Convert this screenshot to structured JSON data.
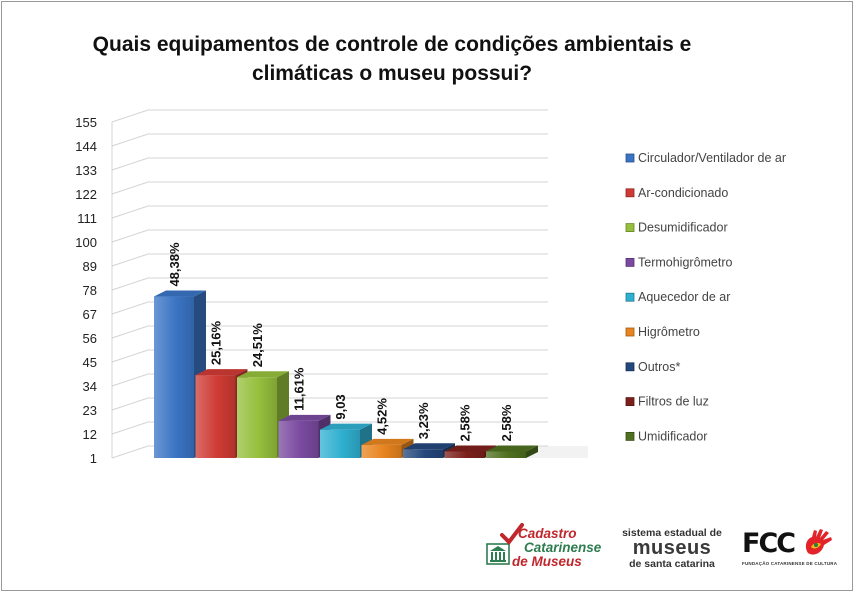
{
  "chart_data": {
    "type": "bar",
    "title": "Quais equipamentos de controle de condições ambientais e climáticas o museu possui?",
    "title_lines": [
      "Quais equipamentos de controle de condições ambientais e",
      "climáticas o museu possui?"
    ],
    "y_ticks": [
      "1",
      "12",
      "23",
      "34",
      "45",
      "56",
      "67",
      "78",
      "89",
      "100",
      "111",
      "122",
      "133",
      "144",
      "155"
    ],
    "ylim": [
      1,
      155
    ],
    "grid": true,
    "legend_position": "right",
    "categories": [
      "Circulador/Ventilador de ar",
      "Ar-condicionado",
      "Desumidificador",
      "Termohigrômetro",
      "Aquecedor de ar",
      "Higrômetro",
      "Outros*",
      "Filtros de luz",
      "Umidificador"
    ],
    "values": [
      75,
      39,
      38,
      18,
      14,
      7,
      5,
      4,
      4
    ],
    "data_labels": [
      "48,38%",
      "25,16%",
      "24,51%",
      "11,61%",
      "9,03",
      "4,52%",
      "3,23%",
      "2,58%",
      "2,58%"
    ],
    "colors": [
      "#3a74c4",
      "#cf3b34",
      "#95bf3c",
      "#7a4aa0",
      "#2fb0d0",
      "#e8841f",
      "#24477c",
      "#7c1f1b",
      "#4f7020"
    ]
  },
  "footer": {
    "cadastro": [
      "Cadastro",
      "Catarinense",
      "de Museus"
    ],
    "sistema": [
      "sistema estadual de",
      "museus",
      "de santa catarina"
    ],
    "fcc": "FCC",
    "fcc_sub": "FUNDAÇÃO CATARINENSE DE CULTURA"
  }
}
